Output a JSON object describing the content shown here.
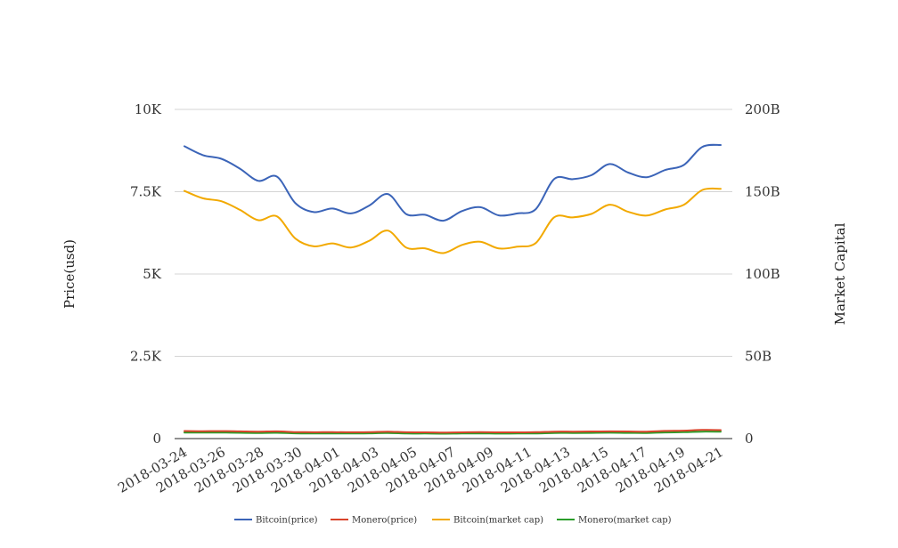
{
  "chart_data": {
    "type": "line",
    "grid": true,
    "legend_position": "bottom",
    "y_left": {
      "label": "Price(usd)",
      "range": [
        0,
        10000
      ],
      "ticks": [
        0,
        2500,
        5000,
        7500,
        10000
      ],
      "tick_labels": [
        "0",
        "2.5K",
        "5K",
        "7.5K",
        "10K"
      ]
    },
    "y_right": {
      "label": "Market Capital",
      "range": [
        0,
        200000000000
      ],
      "ticks": [
        0,
        50000000000,
        100000000000,
        150000000000,
        200000000000
      ],
      "tick_labels": [
        "0",
        "50B",
        "100B",
        "150B",
        "200B"
      ]
    },
    "x_tick_labels": [
      "2018-03-24",
      "2018-03-26",
      "2018-03-28",
      "2018-03-30",
      "2018-04-01",
      "2018-04-03",
      "2018-04-05",
      "2018-04-07",
      "2018-04-09",
      "2018-04-11",
      "2018-04-13",
      "2018-04-15",
      "2018-04-17",
      "2018-04-19",
      "2018-04-21"
    ],
    "x": [
      "2018-03-24",
      "2018-03-25",
      "2018-03-26",
      "2018-03-27",
      "2018-03-28",
      "2018-03-29",
      "2018-03-30",
      "2018-03-31",
      "2018-04-01",
      "2018-04-02",
      "2018-04-03",
      "2018-04-04",
      "2018-04-05",
      "2018-04-06",
      "2018-04-07",
      "2018-04-08",
      "2018-04-09",
      "2018-04-10",
      "2018-04-11",
      "2018-04-12",
      "2018-04-13",
      "2018-04-14",
      "2018-04-15",
      "2018-04-16",
      "2018-04-17",
      "2018-04-18",
      "2018-04-19",
      "2018-04-20",
      "2018-04-21",
      "2018-04-22"
    ],
    "series": [
      {
        "name": "Bitcoin(price)",
        "axis": "left",
        "color": "#3b64b8",
        "values": [
          8880,
          8610,
          8500,
          8200,
          7830,
          7960,
          7150,
          6880,
          6990,
          6840,
          7080,
          7430,
          6820,
          6800,
          6620,
          6910,
          7030,
          6780,
          6840,
          6970,
          7890,
          7880,
          8000,
          8340,
          8080,
          7940,
          8160,
          8310,
          8860,
          8920
        ]
      },
      {
        "name": "Monero(price)",
        "axis": "left",
        "color": "#d9432a",
        "values": [
          230,
          225,
          228,
          220,
          212,
          220,
          198,
          193,
          196,
          192,
          198,
          210,
          192,
          190,
          184,
          190,
          194,
          188,
          190,
          194,
          212,
          212,
          216,
          220,
          215,
          212,
          232,
          240,
          262,
          258
        ]
      },
      {
        "name": "Bitcoin(market cap)",
        "axis": "right",
        "color": "#f2a900",
        "values": [
          150500000000,
          146000000000,
          144200000000,
          139000000000,
          132700000000,
          135000000000,
          121500000000,
          116800000000,
          118600000000,
          116100000000,
          120200000000,
          126400000000,
          116000000000,
          115600000000,
          112700000000,
          117600000000,
          119600000000,
          115500000000,
          116600000000,
          118800000000,
          134500000000,
          134400000000,
          136500000000,
          142100000000,
          137800000000,
          135500000000,
          139200000000,
          142000000000,
          151000000000,
          151800000000
        ]
      },
      {
        "name": "Monero(market cap)",
        "axis": "right",
        "color": "#2a9d2a",
        "values": [
          3700000000,
          3620000000,
          3650000000,
          3520000000,
          3400000000,
          3520000000,
          3180000000,
          3100000000,
          3140000000,
          3080000000,
          3180000000,
          3370000000,
          3080000000,
          3060000000,
          2960000000,
          3060000000,
          3120000000,
          3020000000,
          3060000000,
          3120000000,
          3400000000,
          3400000000,
          3480000000,
          3550000000,
          3460000000,
          3420000000,
          3740000000,
          3880000000,
          4230000000,
          4160000000
        ]
      }
    ]
  }
}
